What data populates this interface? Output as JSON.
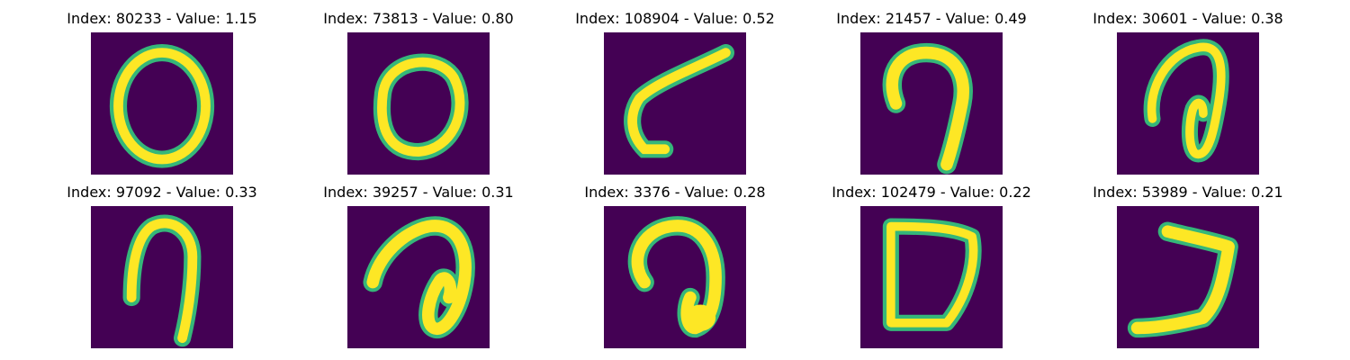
{
  "panels": [
    {
      "title": "Index: 80233 - Value: 1.15",
      "digit_shape": "zero-oval"
    },
    {
      "title": "Index: 73813 - Value: 0.80",
      "digit_shape": "zero-round"
    },
    {
      "title": "Index: 108904 - Value: 0.52",
      "digit_shape": "curved-stroke"
    },
    {
      "title": "Index: 21457 - Value: 0.49",
      "digit_shape": "hook"
    },
    {
      "title": "Index: 30601 - Value: 0.38",
      "digit_shape": "loop-spiral"
    },
    {
      "title": "Index: 97092 - Value: 0.33",
      "digit_shape": "hook-narrow"
    },
    {
      "title": "Index: 39257 - Value: 0.31",
      "digit_shape": "loop-curl"
    },
    {
      "title": "Index: 3376 - Value: 0.28",
      "digit_shape": "hook-thick"
    },
    {
      "title": "Index: 102479 - Value: 0.22",
      "digit_shape": "d-shape"
    },
    {
      "title": "Index: 53989 - Value: 0.21",
      "digit_shape": "reverse-seven"
    }
  ],
  "colors": {
    "background": "#440154",
    "stroke_core": "#fde725",
    "stroke_edge": "#35b779"
  }
}
